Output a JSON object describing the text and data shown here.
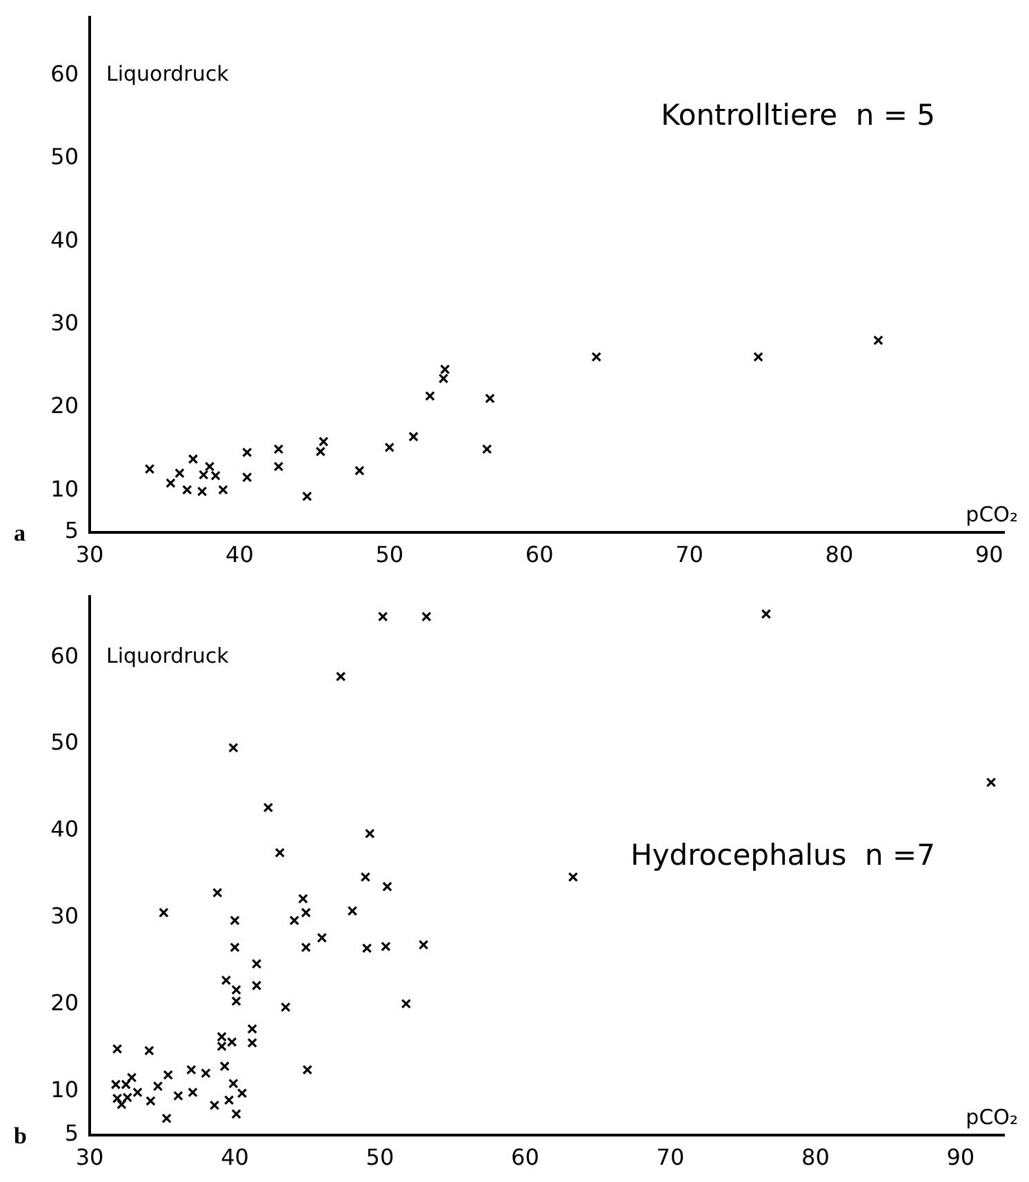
{
  "chart_data": [
    {
      "type": "scatter",
      "title": "Kontrolltiere  n = 5",
      "xlabel": "pCO₂",
      "ylabel": "Liquordruck",
      "annotations": [
        "a"
      ],
      "x": [
        34.0,
        35.4,
        36.0,
        36.5,
        36.9,
        37.5,
        37.6,
        38.0,
        38.4,
        38.9,
        40.5,
        40.5,
        42.6,
        42.6,
        44.5,
        45.4,
        45.6,
        48.0,
        50.0,
        51.6,
        52.7,
        53.6,
        53.7,
        56.5,
        56.7,
        63.8,
        74.6,
        82.6
      ],
      "values": [
        12.6,
        10.9,
        12.1,
        10.1,
        13.8,
        9.9,
        11.9,
        12.9,
        11.8,
        10.1,
        14.6,
        11.6,
        15.0,
        12.9,
        9.3,
        14.7,
        15.9,
        12.4,
        15.2,
        16.5,
        21.4,
        23.5,
        24.6,
        15.0,
        21.1,
        26.1,
        26.1,
        28.1
      ],
      "color": "#000000",
      "marker": "cross",
      "grid": false,
      "legend": false,
      "xlim": [
        30,
        91
      ],
      "xticks": [
        30,
        40,
        50,
        60,
        70,
        80,
        90
      ],
      "ylim": [
        5,
        67
      ],
      "yticks": [
        5,
        10,
        20,
        30,
        40,
        50,
        60
      ]
    },
    {
      "type": "scatter",
      "title": "Hydrocephalus  n =7",
      "xlabel": "pCO₂",
      "ylabel": "Liquordruck",
      "annotations": [
        "b"
      ],
      "x": [
        31.9,
        31.8,
        31.9,
        32.2,
        32.5,
        32.6,
        32.9,
        33.3,
        34.1,
        34.2,
        34.7,
        35.1,
        35.3,
        35.4,
        36.1,
        37.0,
        37.1,
        38.0,
        38.6,
        38.8,
        39.1,
        39.1,
        39.3,
        39.4,
        39.6,
        39.8,
        39.9,
        39.9,
        40.0,
        40.0,
        40.1,
        40.1,
        40.1,
        40.5,
        41.2,
        41.2,
        41.5,
        41.5,
        42.3,
        43.1,
        43.5,
        44.1,
        44.7,
        44.9,
        44.9,
        45.0,
        46.0,
        47.3,
        48.1,
        49.0,
        49.1,
        49.3,
        50.2,
        50.5,
        50.4,
        51.8,
        53.0,
        53.2,
        63.3,
        76.6,
        92.1
      ],
      "values": [
        14.9,
        10.8,
        9.2,
        8.5,
        10.8,
        9.3,
        11.6,
        9.9,
        14.7,
        8.9,
        10.6,
        30.6,
        6.9,
        11.9,
        9.5,
        12.5,
        9.9,
        12.1,
        8.4,
        32.9,
        16.3,
        15.2,
        12.9,
        22.8,
        9.0,
        15.7,
        49.6,
        10.9,
        29.7,
        26.6,
        21.7,
        20.4,
        7.4,
        9.8,
        17.2,
        15.6,
        24.7,
        22.2,
        42.7,
        37.5,
        19.7,
        29.7,
        32.2,
        30.6,
        26.6,
        12.5,
        27.7,
        57.8,
        30.8,
        34.7,
        26.5,
        39.7,
        64.7,
        33.6,
        26.7,
        20.1,
        26.9,
        64.7,
        34.7,
        65.0,
        45.6
      ],
      "color": "#000000",
      "marker": "cross",
      "grid": false,
      "legend": false,
      "xlim": [
        30,
        93
      ],
      "xticks": [
        30,
        40,
        50,
        60,
        70,
        80,
        90
      ],
      "ylim": [
        5,
        67
      ],
      "yticks": [
        5,
        10,
        20,
        30,
        40,
        50,
        60
      ]
    }
  ]
}
